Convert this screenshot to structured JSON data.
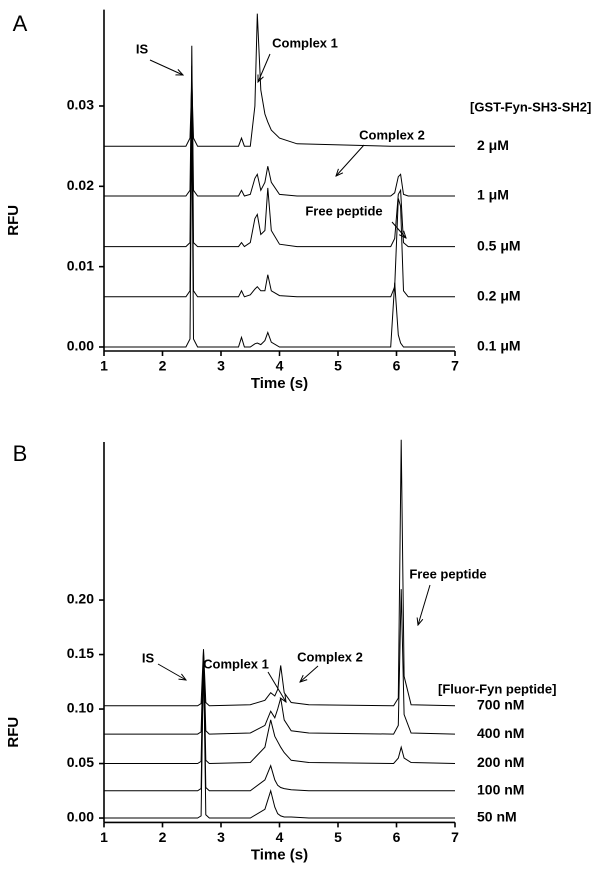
{
  "chart_data": [
    {
      "type": "line",
      "panel_label": "A",
      "xlabel": "Time (s)",
      "ylabel": "RFU",
      "legend_title": "[GST-Fyn-SH3-SH2]",
      "annotations": [
        "IS",
        "Complex 1",
        "Complex 2",
        "Free peptide"
      ],
      "xlim": [
        1,
        7
      ],
      "xticks": [
        1,
        2,
        3,
        4,
        5,
        6,
        7
      ],
      "ylim": [
        -0.0005,
        0.042
      ],
      "yticks": [
        {
          "value": 0,
          "label": "0.00"
        },
        {
          "value": 0.01,
          "label": "0.01"
        },
        {
          "value": 0.02,
          "label": "0.02"
        },
        {
          "value": 0.03,
          "label": "0.03"
        }
      ],
      "x": [
        1,
        2.4,
        2.47,
        2.5,
        2.53,
        2.6,
        3.3,
        3.35,
        3.4,
        3.5,
        3.58,
        3.62,
        3.68,
        3.75,
        3.8,
        3.86,
        4.0,
        4.3,
        5.9,
        5.97,
        6.03,
        6.07,
        6.12,
        6.2,
        7
      ],
      "series": [
        {
          "name": "2 μM",
          "color": "#000000",
          "values": [
            0.025,
            0.025,
            0.026,
            0.033,
            0.026,
            0.025,
            0.025,
            0.026,
            0.025,
            0.025,
            0.03,
            0.0415,
            0.032,
            0.029,
            0.028,
            0.027,
            0.026,
            0.0253,
            0.025,
            0.025,
            0.025,
            0.025,
            0.025,
            0.025,
            0.025
          ]
        },
        {
          "name": "1 μM",
          "color": "#000000",
          "values": [
            0.0188,
            0.0188,
            0.0195,
            0.035,
            0.0195,
            0.0188,
            0.0188,
            0.0195,
            0.0188,
            0.019,
            0.021,
            0.0215,
            0.0195,
            0.0205,
            0.0225,
            0.0205,
            0.019,
            0.0188,
            0.0188,
            0.0192,
            0.0212,
            0.0215,
            0.019,
            0.0188,
            0.0188
          ]
        },
        {
          "name": "0.5 μM",
          "color": "#000000",
          "values": [
            0.0125,
            0.0125,
            0.013,
            0.0375,
            0.013,
            0.0125,
            0.0125,
            0.013,
            0.0125,
            0.013,
            0.016,
            0.0165,
            0.014,
            0.0145,
            0.0198,
            0.0145,
            0.0128,
            0.0125,
            0.0125,
            0.0135,
            0.019,
            0.0195,
            0.013,
            0.0125,
            0.0125
          ]
        },
        {
          "name": "0.2 μM",
          "color": "#000000",
          "values": [
            0.00625,
            0.00625,
            0.007,
            0.034,
            0.007,
            0.00625,
            0.00625,
            0.007,
            0.00625,
            0.0065,
            0.0072,
            0.0075,
            0.007,
            0.007,
            0.009,
            0.007,
            0.0064,
            0.00625,
            0.00625,
            0.0075,
            0.0185,
            0.0175,
            0.007,
            0.00625,
            0.00625
          ]
        },
        {
          "name": "0.1 μM",
          "color": "#000000",
          "values": [
            0,
            0,
            0.001,
            0.0285,
            0.001,
            0,
            0,
            0.0012,
            0,
            0,
            0.0004,
            0.0005,
            0.0003,
            0.0008,
            0.0018,
            0.0006,
            0,
            0,
            0,
            0.008,
            0.0015,
            0.0005,
            0,
            0,
            0
          ]
        }
      ]
    },
    {
      "type": "line",
      "panel_label": "B",
      "xlabel": "Time (s)",
      "ylabel": "RFU",
      "legend_title": "[Fluor-Fyn peptide]",
      "annotations": [
        "IS",
        "Complex 1",
        "Complex 2",
        "Free peptide"
      ],
      "xlim": [
        1,
        7
      ],
      "xticks": [
        1,
        2,
        3,
        4,
        5,
        6,
        7
      ],
      "ylim": [
        -0.004,
        0.345
      ],
      "yticks": [
        {
          "value": 0,
          "label": "0.00"
        },
        {
          "value": 0.05,
          "label": "0.05"
        },
        {
          "value": 0.1,
          "label": "0.10"
        },
        {
          "value": 0.15,
          "label": "0.15"
        },
        {
          "value": 0.2,
          "label": "0.20"
        }
      ],
      "x": [
        1,
        2.6,
        2.66,
        2.7,
        2.74,
        2.8,
        3.5,
        3.75,
        3.85,
        3.92,
        3.97,
        4.02,
        4.08,
        4.2,
        4.5,
        5.95,
        6.03,
        6.08,
        6.13,
        6.25,
        7
      ],
      "series": [
        {
          "name": "700 nM",
          "color": "#000000",
          "values": [
            0.103,
            0.103,
            0.105,
            0.155,
            0.106,
            0.103,
            0.104,
            0.108,
            0.115,
            0.112,
            0.118,
            0.14,
            0.115,
            0.106,
            0.104,
            0.103,
            0.11,
            0.347,
            0.13,
            0.104,
            0.103
          ]
        },
        {
          "name": "400 nM",
          "color": "#000000",
          "values": [
            0.077,
            0.077,
            0.079,
            0.153,
            0.08,
            0.077,
            0.078,
            0.085,
            0.098,
            0.092,
            0.1,
            0.11,
            0.09,
            0.08,
            0.078,
            0.077,
            0.085,
            0.21,
            0.095,
            0.078,
            0.077
          ]
        },
        {
          "name": "200 nM",
          "color": "#000000",
          "values": [
            0.05,
            0.05,
            0.052,
            0.15,
            0.053,
            0.05,
            0.051,
            0.065,
            0.09,
            0.075,
            0.07,
            0.065,
            0.06,
            0.053,
            0.051,
            0.05,
            0.055,
            0.065,
            0.055,
            0.051,
            0.05
          ]
        },
        {
          "name": "100 nM",
          "color": "#000000",
          "values": [
            0.025,
            0.025,
            0.027,
            0.148,
            0.028,
            0.025,
            0.025,
            0.035,
            0.048,
            0.035,
            0.03,
            0.028,
            0.027,
            0.026,
            0.025,
            0.025,
            0.025,
            0.025,
            0.025,
            0.025,
            0.025
          ]
        },
        {
          "name": "50 nM",
          "color": "#000000",
          "values": [
            0,
            0,
            0.002,
            0.15,
            0.003,
            0,
            0,
            0.008,
            0.025,
            0.01,
            0.004,
            0.002,
            0.001,
            0.001,
            0,
            0,
            0,
            0,
            0,
            0,
            0
          ]
        }
      ]
    }
  ]
}
